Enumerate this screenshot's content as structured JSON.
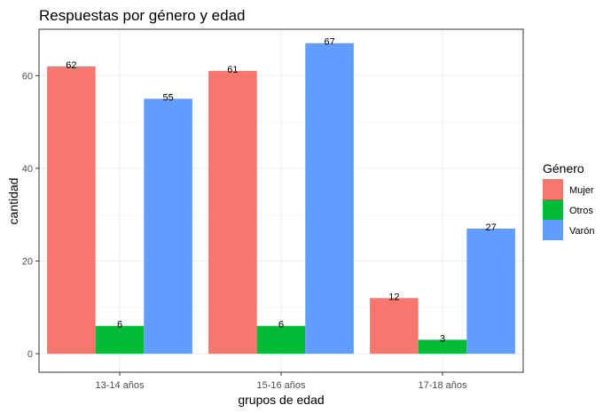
{
  "chart_data": {
    "type": "bar",
    "title": "Respuestas por género y edad",
    "xlabel": "grupos de edad",
    "ylabel": "cantidad",
    "categories": [
      "13-14 años",
      "15-16 años",
      "17-18 años"
    ],
    "series": [
      {
        "name": "Mujer",
        "color": "#F8766D",
        "values": [
          62,
          61,
          12
        ]
      },
      {
        "name": "Otros",
        "color": "#00BA38",
        "values": [
          6,
          6,
          3
        ]
      },
      {
        "name": "Varón",
        "color": "#619CFF",
        "values": [
          55,
          67,
          27
        ]
      }
    ],
    "ylim": [
      -4,
      70
    ],
    "yticks": [
      0,
      20,
      40,
      60
    ],
    "grid": true,
    "legend": {
      "title": "Género",
      "position": "right"
    }
  }
}
